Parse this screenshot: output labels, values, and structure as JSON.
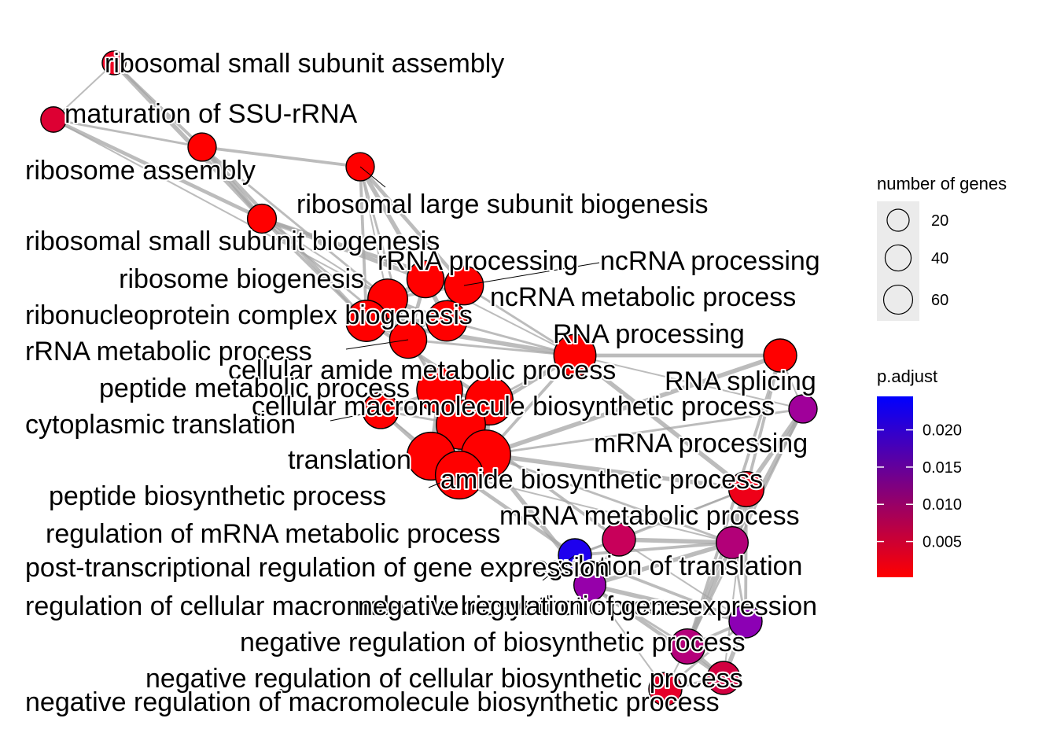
{
  "legend_size": {
    "title": "number of genes",
    "entries": [
      {
        "label": "20",
        "value": 20
      },
      {
        "label": "40",
        "value": 40
      },
      {
        "label": "60",
        "value": 60
      }
    ]
  },
  "legend_color": {
    "title": "p.adjust",
    "ticks": [
      {
        "label": "0.020",
        "value": 0.02
      },
      {
        "label": "0.015",
        "value": 0.015
      },
      {
        "label": "0.010",
        "value": 0.01
      },
      {
        "label": "0.005",
        "value": 0.005
      }
    ],
    "range": [
      0.0002,
      0.0245
    ],
    "color_low": "#ff0000",
    "color_high": "#0000ff"
  },
  "nodes": [
    {
      "id": "n1",
      "label": "ribosomal small subunit assembly",
      "genes": 8,
      "color": "#ee0022"
    },
    {
      "id": "n2",
      "label": "maturation of SSU-rRNA",
      "genes": 10,
      "color": "#dd0033"
    },
    {
      "id": "n3",
      "label": "ribosome assembly",
      "genes": 14,
      "color": "#ff0000"
    },
    {
      "id": "n4",
      "label": "ribosomal large subunit biogenesis",
      "genes": 14,
      "color": "#ff0000"
    },
    {
      "id": "n5",
      "label": "ribosomal small subunit biogenesis",
      "genes": 15,
      "color": "#ff0000"
    },
    {
      "id": "n6",
      "label": "rRNA processing",
      "genes": 30,
      "color": "#ff0000"
    },
    {
      "id": "n7",
      "label": "ncRNA processing",
      "genes": 34,
      "color": "#ff0000"
    },
    {
      "id": "n8",
      "label": "ribosome biogenesis",
      "genes": 36,
      "color": "#ff0000"
    },
    {
      "id": "n9",
      "label": "ncRNA metabolic process",
      "genes": 38,
      "color": "#ff0000"
    },
    {
      "id": "n10",
      "label": "ribonucleoprotein complex biogenesis",
      "genes": 40,
      "color": "#ff0000"
    },
    {
      "id": "n11",
      "label": "RNA processing",
      "genes": 42,
      "color": "#ff0000"
    },
    {
      "id": "n12",
      "label": "rRNA metabolic process",
      "genes": 30,
      "color": "#ff0000"
    },
    {
      "id": "n13",
      "label": "RNA splicing",
      "genes": 22,
      "color": "#ff0000"
    },
    {
      "id": "n14",
      "label": "cellular amide metabolic process",
      "genes": 58,
      "color": "#ff0000"
    },
    {
      "id": "n15",
      "label": "peptide metabolic process",
      "genes": 52,
      "color": "#ff0000"
    },
    {
      "id": "n16",
      "label": "cellular macromolecule biosynthetic process",
      "genes": 62,
      "color": "#ff0000"
    },
    {
      "id": "n17",
      "label": "cytoplasmic translation",
      "genes": 28,
      "color": "#ff0000"
    },
    {
      "id": "n18",
      "label": "mRNA processing",
      "genes": 14,
      "color": "#a0009a"
    },
    {
      "id": "n19",
      "label": "translation",
      "genes": 58,
      "color": "#ff0000"
    },
    {
      "id": "n20",
      "label": "amide biosynthetic process",
      "genes": 62,
      "color": "#ff0000"
    },
    {
      "id": "n21",
      "label": "peptide biosynthetic process",
      "genes": 58,
      "color": "#ff0000"
    },
    {
      "id": "n22",
      "label": "mRNA metabolic process",
      "genes": 26,
      "color": "#ee0018"
    },
    {
      "id": "n23",
      "label": "regulation of mRNA metabolic process",
      "genes": 22,
      "color": "#c8005a"
    },
    {
      "id": "n24",
      "label": "regulation of translation",
      "genes": 20,
      "color": "#b20078"
    },
    {
      "id": "n25",
      "label": "post-transcriptional regulation of gene expression",
      "genes": 22,
      "color": "#1e00ee"
    },
    {
      "id": "n26",
      "label": "regulation of cellular macromolecule biosynthetic process",
      "genes": 20,
      "color": "#9600aa"
    },
    {
      "id": "n27",
      "label": "negative regulation of gene expression",
      "genes": 22,
      "color": "#8c00b4"
    },
    {
      "id": "n28",
      "label": "negative regulation of biosynthetic process",
      "genes": 26,
      "color": "#b4007a"
    },
    {
      "id": "n29",
      "label": "negative regulation of cellular biosynthetic process",
      "genes": 22,
      "color": "#d20040"
    },
    {
      "id": "n30",
      "label": "negative regulation of macromolecule biosynthetic process",
      "genes": 22,
      "color": "#e6002a"
    }
  ],
  "edges": [
    [
      "n1",
      "n2"
    ],
    [
      "n1",
      "n3"
    ],
    [
      "n1",
      "n5"
    ],
    [
      "n2",
      "n3"
    ],
    [
      "n2",
      "n5"
    ],
    [
      "n2",
      "n8"
    ],
    [
      "n3",
      "n4"
    ],
    [
      "n3",
      "n5"
    ],
    [
      "n3",
      "n8"
    ],
    [
      "n3",
      "n10"
    ],
    [
      "n4",
      "n8"
    ],
    [
      "n4",
      "n10"
    ],
    [
      "n4",
      "n6"
    ],
    [
      "n4",
      "n12"
    ],
    [
      "n4",
      "n7"
    ],
    [
      "n5",
      "n8"
    ],
    [
      "n5",
      "n10"
    ],
    [
      "n5",
      "n6"
    ],
    [
      "n5",
      "n12"
    ],
    [
      "n5",
      "n7"
    ],
    [
      "n6",
      "n7"
    ],
    [
      "n6",
      "n8"
    ],
    [
      "n6",
      "n9"
    ],
    [
      "n6",
      "n10"
    ],
    [
      "n6",
      "n12"
    ],
    [
      "n6",
      "n11"
    ],
    [
      "n7",
      "n8"
    ],
    [
      "n7",
      "n9"
    ],
    [
      "n7",
      "n11"
    ],
    [
      "n7",
      "n12"
    ],
    [
      "n8",
      "n10"
    ],
    [
      "n8",
      "n12"
    ],
    [
      "n8",
      "n9"
    ],
    [
      "n9",
      "n11"
    ],
    [
      "n9",
      "n10"
    ],
    [
      "n9",
      "n12"
    ],
    [
      "n10",
      "n12"
    ],
    [
      "n10",
      "n11"
    ],
    [
      "n11",
      "n12"
    ],
    [
      "n11",
      "n13"
    ],
    [
      "n11",
      "n18"
    ],
    [
      "n11",
      "n20"
    ],
    [
      "n11",
      "n22"
    ],
    [
      "n11",
      "n14"
    ],
    [
      "n11",
      "n16"
    ],
    [
      "n13",
      "n18"
    ],
    [
      "n13",
      "n22"
    ],
    [
      "n18",
      "n22"
    ],
    [
      "n18",
      "n20"
    ],
    [
      "n14",
      "n15"
    ],
    [
      "n14",
      "n16"
    ],
    [
      "n14",
      "n19"
    ],
    [
      "n14",
      "n20"
    ],
    [
      "n14",
      "n21"
    ],
    [
      "n14",
      "n17"
    ],
    [
      "n15",
      "n16"
    ],
    [
      "n15",
      "n17"
    ],
    [
      "n15",
      "n19"
    ],
    [
      "n15",
      "n20"
    ],
    [
      "n15",
      "n21"
    ],
    [
      "n16",
      "n19"
    ],
    [
      "n16",
      "n20"
    ],
    [
      "n16",
      "n21"
    ],
    [
      "n16",
      "n17"
    ],
    [
      "n17",
      "n19"
    ],
    [
      "n17",
      "n21"
    ],
    [
      "n19",
      "n20"
    ],
    [
      "n19",
      "n21"
    ],
    [
      "n20",
      "n21"
    ],
    [
      "n10",
      "n14"
    ],
    [
      "n12",
      "n15"
    ],
    [
      "n8",
      "n15"
    ],
    [
      "n20",
      "n22"
    ],
    [
      "n20",
      "n24"
    ],
    [
      "n21",
      "n25"
    ],
    [
      "n21",
      "n24"
    ],
    [
      "n16",
      "n23"
    ],
    [
      "n16",
      "n26"
    ],
    [
      "n22",
      "n23"
    ],
    [
      "n22",
      "n24"
    ],
    [
      "n22",
      "n25"
    ],
    [
      "n22",
      "n27"
    ],
    [
      "n23",
      "n24"
    ],
    [
      "n23",
      "n25"
    ],
    [
      "n23",
      "n26"
    ],
    [
      "n23",
      "n27"
    ],
    [
      "n24",
      "n25"
    ],
    [
      "n24",
      "n26"
    ],
    [
      "n24",
      "n27"
    ],
    [
      "n24",
      "n28"
    ],
    [
      "n25",
      "n26"
    ],
    [
      "n25",
      "n27"
    ],
    [
      "n26",
      "n27"
    ],
    [
      "n26",
      "n28"
    ],
    [
      "n26",
      "n29"
    ],
    [
      "n26",
      "n30"
    ],
    [
      "n27",
      "n28"
    ],
    [
      "n27",
      "n29"
    ],
    [
      "n27",
      "n30"
    ],
    [
      "n28",
      "n29"
    ],
    [
      "n28",
      "n30"
    ],
    [
      "n29",
      "n30"
    ],
    [
      "n18",
      "n24"
    ],
    [
      "n18",
      "n28"
    ],
    [
      "n22",
      "n28"
    ],
    [
      "n22",
      "n29"
    ],
    [
      "n13",
      "n28"
    ],
    [
      "n13",
      "n20"
    ]
  ]
}
